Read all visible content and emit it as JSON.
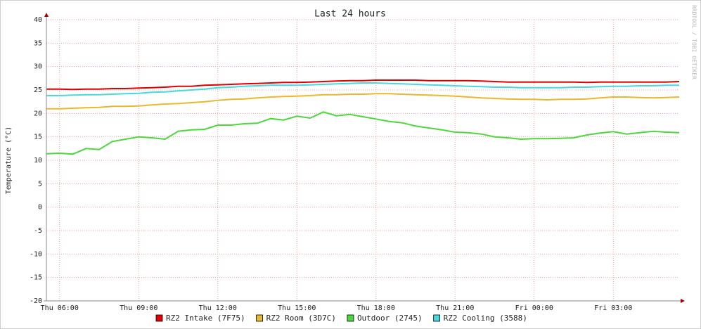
{
  "chart_data": {
    "type": "line",
    "title": "Last 24 hours",
    "y_label": "Temperature (°C)",
    "watermark": "RRDTOOL / TOBI OETIKER",
    "x": [
      5.5,
      6,
      6.5,
      7,
      7.5,
      8,
      8.5,
      9,
      9.5,
      10,
      10.5,
      11,
      11.5,
      12,
      12.5,
      13,
      13.5,
      14,
      14.5,
      15,
      15.5,
      16,
      16.5,
      17,
      17.5,
      18,
      18.5,
      19,
      19.5,
      20,
      20.5,
      21,
      21.5,
      22,
      22.5,
      23,
      23.5,
      24,
      24.5,
      25,
      25.5,
      26,
      26.5,
      27,
      27.5,
      28,
      28.5,
      29,
      29.5
    ],
    "xlim": [
      5.5,
      29.5
    ],
    "xticks": [
      {
        "value": 6,
        "label": "Thu 06:00"
      },
      {
        "value": 9,
        "label": "Thu 09:00"
      },
      {
        "value": 12,
        "label": "Thu 12:00"
      },
      {
        "value": 15,
        "label": "Thu 15:00"
      },
      {
        "value": 18,
        "label": "Thu 18:00"
      },
      {
        "value": 21,
        "label": "Thu 21:00"
      },
      {
        "value": 24,
        "label": "Fri 00:00"
      },
      {
        "value": 27,
        "label": "Fri 03:00"
      }
    ],
    "ylim": [
      -20,
      40
    ],
    "yticks": [
      -20,
      -15,
      -10,
      -5,
      0,
      5,
      10,
      15,
      20,
      25,
      30,
      35,
      40
    ],
    "grid": true,
    "series": [
      {
        "name": "RZ2 Intake (7F75)",
        "color": "#e00000",
        "values": [
          25.2,
          25.2,
          25.1,
          25.2,
          25.2,
          25.3,
          25.3,
          25.4,
          25.5,
          25.6,
          25.8,
          25.8,
          26,
          26.1,
          26.2,
          26.3,
          26.4,
          26.5,
          26.6,
          26.6,
          26.7,
          26.8,
          26.9,
          27,
          27,
          27.1,
          27.1,
          27.1,
          27.1,
          27,
          27,
          27,
          27,
          26.9,
          26.8,
          26.7,
          26.7,
          26.7,
          26.7,
          26.7,
          26.7,
          26.6,
          26.7,
          26.7,
          26.7,
          26.7,
          26.7,
          26.7,
          26.8
        ]
      },
      {
        "name": "RZ2 Room (3D7C)",
        "color": "#e8b830",
        "values": [
          21,
          21,
          21.1,
          21.2,
          21.3,
          21.5,
          21.5,
          21.6,
          21.8,
          22,
          22.1,
          22.3,
          22.5,
          22.8,
          23,
          23.1,
          23.3,
          23.5,
          23.6,
          23.7,
          23.8,
          24,
          24,
          24.1,
          24.1,
          24.2,
          24.2,
          24.1,
          24,
          23.9,
          23.8,
          23.7,
          23.5,
          23.3,
          23.2,
          23.1,
          23,
          23,
          22.9,
          23,
          23,
          23.1,
          23.3,
          23.5,
          23.5,
          23.4,
          23.3,
          23.4,
          23.5
        ]
      },
      {
        "name": "Outdoor (2745)",
        "color": "#4cd83c",
        "values": [
          11.4,
          11.5,
          11.3,
          12.5,
          12.3,
          14,
          14.5,
          15,
          14.8,
          14.5,
          16.2,
          16.5,
          16.6,
          17.5,
          17.5,
          17.8,
          17.9,
          18.9,
          18.6,
          19.4,
          19,
          20.3,
          19.5,
          19.8,
          19.3,
          18.8,
          18.3,
          18,
          17.3,
          16.9,
          16.5,
          16,
          15.9,
          15.6,
          15,
          14.8,
          14.5,
          14.6,
          14.6,
          14.7,
          14.8,
          15.4,
          15.8,
          16.1,
          15.6,
          15.9,
          16.2,
          16,
          15.9
        ]
      },
      {
        "name": "RZ2 Cooling (3588)",
        "color": "#48d8e0",
        "values": [
          23.8,
          23.8,
          23.9,
          24,
          24,
          24.1,
          24.2,
          24.3,
          24.5,
          24.6,
          24.8,
          25,
          25.2,
          25.5,
          25.6,
          25.8,
          25.9,
          26,
          26,
          26,
          26.1,
          26.2,
          26.3,
          26.4,
          26.5,
          26.5,
          26.4,
          26.3,
          26.2,
          26.1,
          26,
          25.9,
          25.8,
          25.7,
          25.6,
          25.6,
          25.5,
          25.5,
          25.5,
          25.5,
          25.6,
          25.6,
          25.7,
          25.8,
          25.8,
          25.9,
          25.9,
          26,
          26
        ]
      }
    ]
  }
}
